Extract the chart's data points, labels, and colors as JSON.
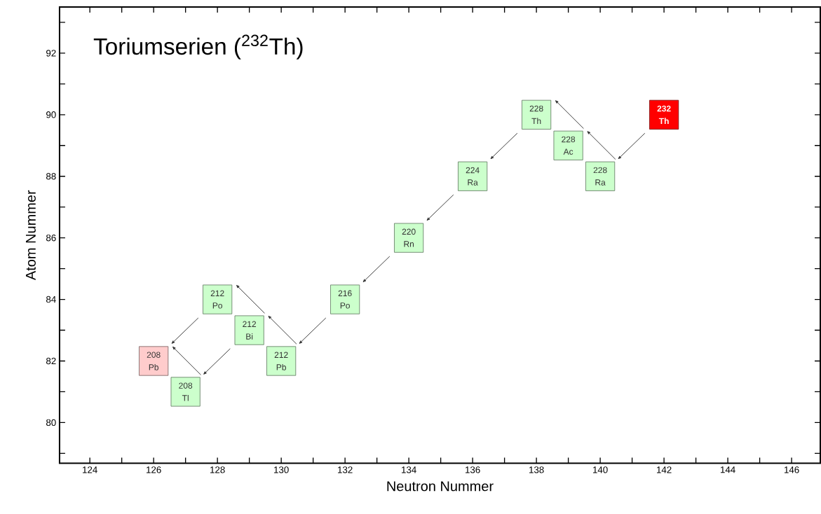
{
  "chart_data": {
    "type": "scatter",
    "title": "Toriumserien ($^{232}$Th)",
    "xlabel": "Neutron Nummer",
    "ylabel": "Atom Nummer",
    "x": [
      142,
      140,
      139,
      138,
      136,
      134,
      132,
      130,
      129,
      128,
      126,
      127
    ],
    "values": [
      90,
      88,
      89,
      90,
      88,
      86,
      84,
      82,
      83,
      84,
      82,
      81
    ],
    "colors": [
      "#ff0000",
      "#ccffcc",
      "#ccffcc",
      "#ccffcc",
      "#ccffcc",
      "#ccffcc",
      "#ccffcc",
      "#ccffcc",
      "#ccffcc",
      "#ccffcc",
      "#ffcccc",
      "#ccffcc"
    ],
    "annotations": [
      {
        "text": "232",
        "x": 142,
        "y": 90
      },
      {
        "text": "Th",
        "x": 142,
        "y": 90
      },
      {
        "text": "228",
        "x": 140,
        "y": 88
      },
      {
        "text": "Ra",
        "x": 140,
        "y": 88
      },
      {
        "text": "228",
        "x": 139,
        "y": 89
      },
      {
        "text": "Ac",
        "x": 139,
        "y": 89
      },
      {
        "text": "228",
        "x": 138,
        "y": 90
      },
      {
        "text": "Th",
        "x": 138,
        "y": 90
      },
      {
        "text": "224",
        "x": 136,
        "y": 88
      },
      {
        "text": "Ra",
        "x": 136,
        "y": 88
      },
      {
        "text": "220",
        "x": 134,
        "y": 86
      },
      {
        "text": "Rn",
        "x": 134,
        "y": 86
      },
      {
        "text": "216",
        "x": 132,
        "y": 84
      },
      {
        "text": "Po",
        "x": 132,
        "y": 84
      },
      {
        "text": "212",
        "x": 130,
        "y": 82
      },
      {
        "text": "Pb",
        "x": 130,
        "y": 82
      },
      {
        "text": "212",
        "x": 129,
        "y": 83
      },
      {
        "text": "Bi",
        "x": 129,
        "y": 83
      },
      {
        "text": "212",
        "x": 128,
        "y": 84
      },
      {
        "text": "Po",
        "x": 128,
        "y": 84
      },
      {
        "text": "208",
        "x": 126,
        "y": 82
      },
      {
        "text": "Pb",
        "x": 126,
        "y": 82
      },
      {
        "text": "208",
        "x": 127,
        "y": 81
      },
      {
        "text": "Tl",
        "x": 127,
        "y": 81
      }
    ],
    "xlim": [
      123.05,
      146.9
    ],
    "ylim": [
      78.68,
      93.5
    ],
    "xticks": [
      124,
      {
        "value": 125,
        "label": null
      },
      126,
      {
        "value": 127,
        "label": null
      },
      128,
      {
        "value": 129,
        "label": null
      },
      130,
      {
        "value": 131,
        "label": null
      },
      132,
      {
        "value": 133,
        "label": null
      },
      134,
      {
        "value": 135,
        "label": null
      },
      136,
      {
        "value": 137,
        "label": null
      },
      138,
      {
        "value": 139,
        "label": null
      },
      140,
      {
        "value": 141,
        "label": null
      },
      142,
      {
        "value": 143,
        "label": null
      },
      144,
      {
        "value": 145,
        "label": null
      },
      146
    ],
    "yticks": [
      {
        "value": 79,
        "label": null
      },
      80,
      {
        "value": 81,
        "label": null
      },
      82,
      {
        "value": 83,
        "label": null
      },
      84,
      {
        "value": 85,
        "label": null
      },
      86,
      {
        "value": 87,
        "label": null
      },
      88,
      {
        "value": 89,
        "label": null
      },
      90,
      {
        "value": 91,
        "label": null
      },
      92,
      {
        "value": 93,
        "label": null
      }
    ],
    "marker": "square",
    "grid": false
  }
}
